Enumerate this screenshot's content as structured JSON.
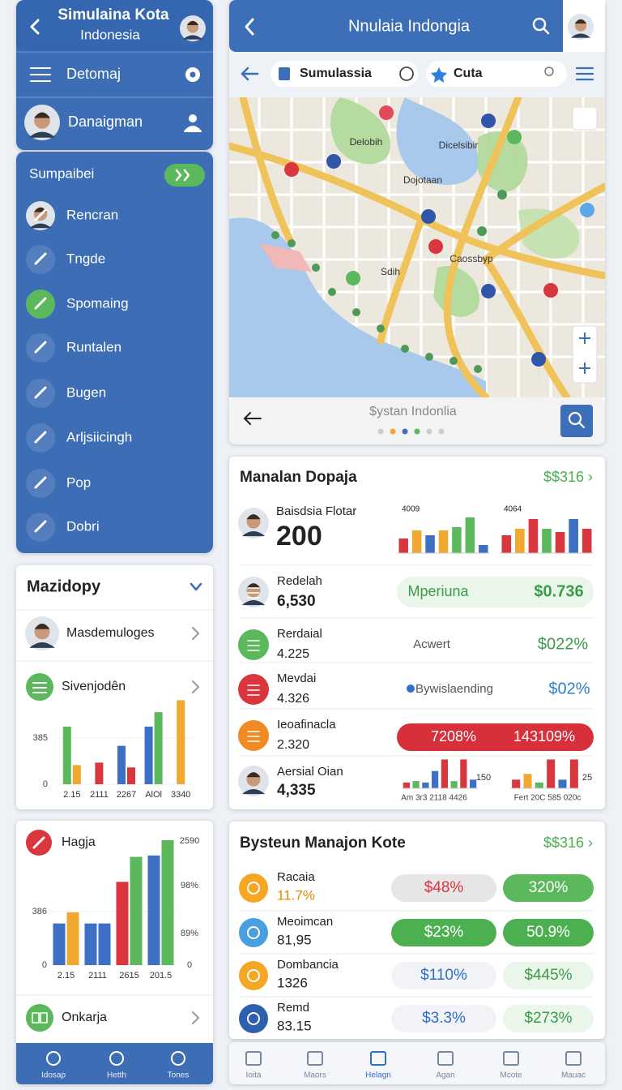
{
  "left_header": {
    "title": "Simulaina Kota",
    "subtitle": "Indonesia",
    "items": [
      "Detomaj",
      "Danaigman"
    ]
  },
  "left_menu": {
    "title": "Sumpaibei",
    "items": [
      "Rencran",
      "Tngde",
      "Spomaing",
      "Runtalen",
      "Bugen",
      "Arljsiicingh",
      "Pop",
      "Dobri"
    ]
  },
  "mazidopy": {
    "title": "Mazidopy",
    "user": "Masdemuloges",
    "section": "Sivenjodên",
    "chart": {
      "type": "bar",
      "categories": [
        "2.15",
        "2111",
        "2267",
        "AlOl",
        "3340"
      ],
      "ylim": [
        0,
        770
      ],
      "yticks": [
        0,
        385
      ],
      "series": [
        {
          "color": "#3d6fc4",
          "values": [
            null,
            null,
            320,
            480,
            null
          ]
        },
        {
          "color": "#5cb85c",
          "values": [
            480,
            null,
            null,
            600,
            null
          ]
        },
        {
          "color": "#f0a830",
          "values": [
            160,
            null,
            null,
            null,
            700
          ]
        },
        {
          "color": "#d9363e",
          "values": [
            null,
            180,
            140,
            null,
            null
          ]
        }
      ]
    }
  },
  "hagja": {
    "title": "Hagja",
    "chart": {
      "type": "bar",
      "categories": [
        "2.15",
        "2111",
        "2615",
        "201.5"
      ],
      "ylim": [
        0,
        900
      ],
      "yticks": [
        0,
        386
      ],
      "right_labels": [
        "2590",
        "98%",
        "89%",
        "0"
      ],
      "series": [
        {
          "color": "#3d6fc4",
          "values": [
            300,
            300,
            null,
            790
          ]
        },
        {
          "color": "#f0a830",
          "values": [
            380,
            null,
            null,
            null
          ]
        },
        {
          "color": "#3d6fc4",
          "values": [
            null,
            300,
            null,
            null
          ]
        },
        {
          "color": "#d9363e",
          "values": [
            null,
            null,
            600,
            null
          ]
        },
        {
          "color": "#5cb85c",
          "values": [
            null,
            null,
            780,
            900
          ]
        }
      ]
    },
    "footer": "Onkarja",
    "nav": [
      "Idosap",
      "Hetth",
      "Tones"
    ]
  },
  "map_panel": {
    "title": "Nnulaia Indongia",
    "tabs": [
      "Sumulassia",
      "Cuta"
    ],
    "places": [
      "Delobih",
      "Dicelsibir",
      "Dojotaan",
      "Sdih",
      "Caossbyp"
    ],
    "footer": "$ystan Indonlia"
  },
  "manalan": {
    "title": "Manalan Dopaja",
    "link": "$$316 ›",
    "feature": {
      "name": "Baisdsia Flotar",
      "value": "200",
      "charts": [
        {
          "type": "bar",
          "label": "4009",
          "ylim": [
            0,
            50
          ],
          "values": [
            18,
            28,
            22,
            28,
            32,
            44,
            10
          ],
          "colors": [
            "#d9363e",
            "#f0a830",
            "#3d6fc4",
            "#f0a830",
            "#5cb85c",
            "#5cb85c",
            "#3d6fc4"
          ]
        },
        {
          "type": "bar",
          "label": "4064",
          "ylim": [
            0,
            50
          ],
          "values": [
            22,
            30,
            42,
            30,
            26,
            42,
            30
          ],
          "colors": [
            "#d9363e",
            "#f0a830",
            "#d9363e",
            "#5cb85c",
            "#d9363e",
            "#3d6fc4",
            "#d9363e"
          ]
        }
      ]
    },
    "rows": [
      {
        "name": "Redelah",
        "value": "6,530",
        "label": "Mperiuna",
        "amount": "$0.736"
      },
      {
        "name": "Rerdaial",
        "value": "4.225",
        "label": "Acwert",
        "amount": "$022%"
      },
      {
        "name": "Mevdai",
        "value": "4.326",
        "label": "Bywislaending",
        "amount": "$02%"
      },
      {
        "name": "Ieoafinacla",
        "value": "2.320",
        "label": "7208%",
        "amount": "143109%"
      }
    ],
    "last_row": {
      "name": "Aersial Oian",
      "value": "4,335",
      "charts": [
        {
          "type": "bar",
          "caption": "Am 3r3 2118 4426",
          "side": "150",
          "ylim": [
            0,
            45
          ],
          "values": [
            8,
            10,
            8,
            24,
            40,
            10,
            40,
            12
          ],
          "colors": [
            "#d9363e",
            "#5cb85c",
            "#3d6fc4",
            "#3d6fc4",
            "#d9363e",
            "#5cb85c",
            "#d9363e",
            "#3d6fc4"
          ]
        },
        {
          "type": "bar",
          "caption": "Fert 20C 585 020c",
          "side": "25",
          "ylim": [
            0,
            45
          ],
          "values": [
            12,
            20,
            8,
            40,
            12,
            40
          ],
          "colors": [
            "#d9363e",
            "#f0a830",
            "#5cb85c",
            "#d9363e",
            "#3d6fc4",
            "#d9363e"
          ]
        }
      ]
    }
  },
  "bysteun": {
    "title": "Bysteun Manajon Kote",
    "link": "$$316 ›",
    "rows": [
      {
        "name": "Racaia",
        "value": "11.7%",
        "a": "$48%",
        "b": "320%"
      },
      {
        "name": "Meoimcan",
        "value": "81,95",
        "a": "$23%",
        "b": "50.9%"
      },
      {
        "name": "Dombancia",
        "value": "1326",
        "a": "$110%",
        "b": "$445%"
      },
      {
        "name": "Remd",
        "value": "83.15",
        "a": "$3.3%",
        "b": "$273%"
      }
    ]
  },
  "bottom_nav": [
    "Ioita",
    "Maors",
    "Helagn",
    "Agan",
    "Mcote",
    "Mauac"
  ]
}
